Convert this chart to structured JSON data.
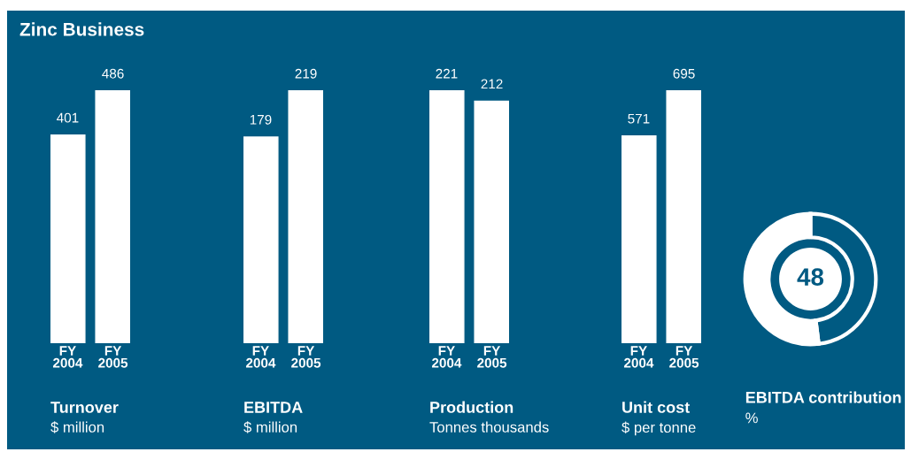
{
  "chart_data": [
    {
      "type": "bar",
      "title": "Zinc Business",
      "categories": [
        "FY\n2004",
        "FY\n2005"
      ],
      "values": [
        401,
        486
      ],
      "color": "#ffffff",
      "data_labels": true,
      "xlabel": "Turnover",
      "annotations": [
        "$ million"
      ]
    },
    {
      "type": "bar",
      "categories": [
        "FY\n2004",
        "FY\n2005"
      ],
      "values": [
        179,
        219
      ],
      "color": "#ffffff",
      "data_labels": true,
      "xlabel": "EBITDA",
      "annotations": [
        "$ million"
      ]
    },
    {
      "type": "bar",
      "categories": [
        "FY\n2004",
        "FY\n2005"
      ],
      "values": [
        221,
        212
      ],
      "color": "#ffffff",
      "data_labels": true,
      "xlabel": "Production",
      "annotations": [
        "Tonnes thousands"
      ]
    },
    {
      "type": "bar",
      "categories": [
        "FY\n2004",
        "FY\n2005"
      ],
      "values": [
        571,
        695
      ],
      "color": "#ffffff",
      "data_labels": true,
      "xlabel": "Unit cost",
      "annotations": [
        "$ per tonne"
      ]
    },
    {
      "type": "donut",
      "categories": [
        null,
        null
      ],
      "values": [
        48,
        52
      ],
      "colors": [
        "#005a82",
        "#ffffff"
      ],
      "value_labels": [
        "48",
        null
      ],
      "xlabel": "EBITDA contribution",
      "annotations": [
        "%"
      ]
    }
  ]
}
